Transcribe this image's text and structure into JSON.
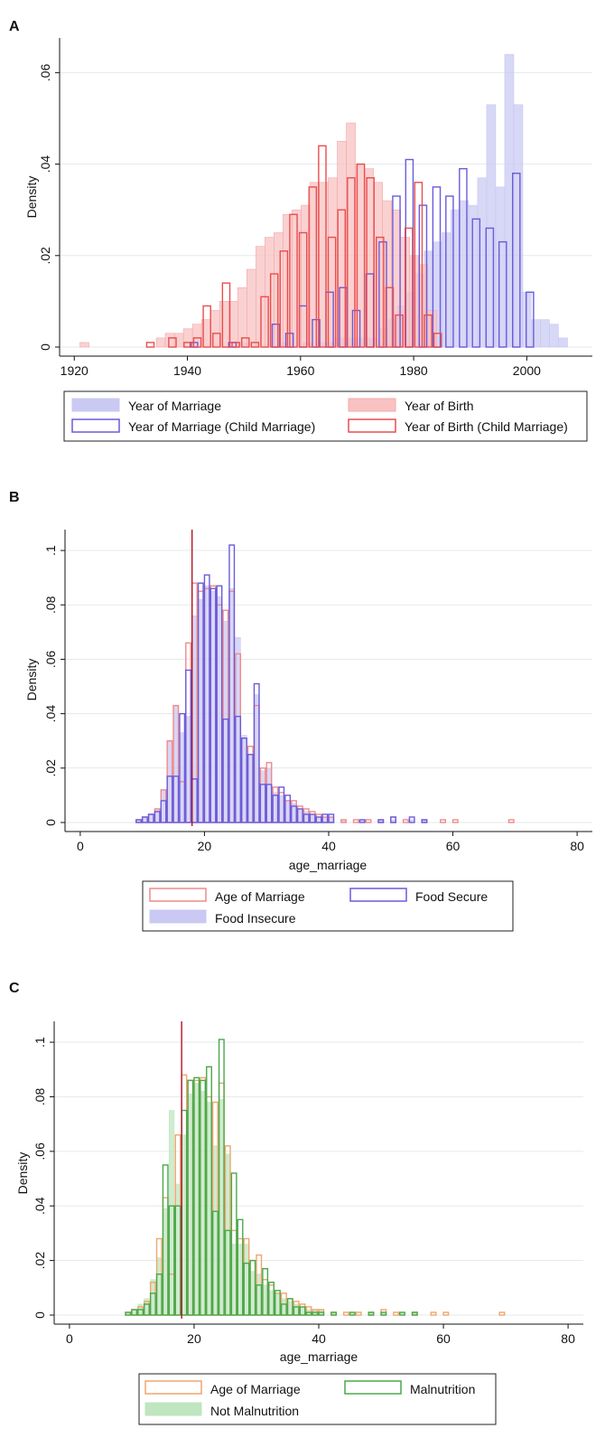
{
  "colors": {
    "marriage_fill": "#c9c9f3",
    "marriage_edge": "#6a5bdc",
    "birth_fill": "#f8c2c2",
    "birth_edge": "#ea4d4d",
    "orange_edge": "#f0a56e",
    "green_fill": "#bfe6bf",
    "green_edge": "#4aa84a",
    "ref_line": "#b0132b"
  },
  "chart_data": [
    {
      "panel_label": "A",
      "type": "histogram",
      "xlabel": "",
      "ylabel": "Density",
      "xlim": [
        1919,
        2010
      ],
      "ylim": [
        0,
        0.066
      ],
      "xticks": [
        "1920",
        "1940",
        "1960",
        "1980",
        "2000"
      ],
      "xtick_values": [
        1920,
        1940,
        1960,
        1980,
        2000
      ],
      "yticks": [
        "0",
        ".02",
        ".04",
        ".06"
      ],
      "ytick_values": [
        0,
        0.02,
        0.04,
        0.06
      ],
      "grid": true,
      "legend_position": "bottom",
      "legend": {
        "items": [
          {
            "label": "Year of Marriage",
            "series": 0
          },
          {
            "label": "Year of Birth",
            "series": 1
          },
          {
            "label": "Year of Marriage (Child Marriage)",
            "series": 2
          },
          {
            "label": "Year of Birth (Child Marriage)",
            "series": 3
          }
        ]
      },
      "series": [
        {
          "name": "Year of Marriage",
          "style": "filled",
          "fill": "#c9c9f3",
          "stroke": "#c9c9f3",
          "bin_width": 1.6,
          "bins": [
            1949.2,
            1956.4,
            1960.4,
            1962.9,
            1964.5,
            1966.0,
            1967.6,
            1969.2,
            1970.8,
            1972.3,
            1973.9,
            1975.5,
            1977.1,
            1978.7,
            1980.3,
            1981.9,
            1983.4,
            1985.0,
            1986.6,
            1988.1,
            1989.7,
            1991.3,
            1992.9,
            1994.5,
            1996.1,
            1997.7,
            1999.2,
            2000.8,
            2002.4,
            2004.0,
            2005.6
          ],
          "values": [
            0.001,
            0.001,
            0.001,
            0.001,
            0.001,
            0.002,
            0.002,
            0.002,
            0.002,
            0.002,
            0.004,
            0.006,
            0.009,
            0.012,
            0.016,
            0.021,
            0.023,
            0.025,
            0.03,
            0.032,
            0.031,
            0.037,
            0.053,
            0.035,
            0.064,
            0.053,
            0.012,
            0.006,
            0.006,
            0.005,
            0.002
          ]
        },
        {
          "name": "Year of Birth",
          "style": "filled",
          "fill": "#f8c2c2",
          "stroke": "#f3a9a9",
          "bin_width": 1.6,
          "bins": [
            1921.0,
            1934.5,
            1936.1,
            1937.7,
            1939.3,
            1940.9,
            1942.5,
            1944.1,
            1945.7,
            1947.3,
            1948.9,
            1950.5,
            1952.1,
            1953.7,
            1955.3,
            1956.9,
            1958.5,
            1960.1,
            1961.7,
            1963.3,
            1964.9,
            1966.5,
            1968.1,
            1969.7,
            1971.3,
            1972.9,
            1974.5,
            1976.1,
            1977.7,
            1979.3,
            1980.9,
            1982.5
          ],
          "values": [
            0.001,
            0.002,
            0.003,
            0.003,
            0.004,
            0.005,
            0.006,
            0.008,
            0.01,
            0.01,
            0.013,
            0.017,
            0.022,
            0.024,
            0.025,
            0.029,
            0.03,
            0.031,
            0.036,
            0.036,
            0.037,
            0.045,
            0.049,
            0.04,
            0.039,
            0.036,
            0.032,
            0.03,
            0.024,
            0.02,
            0.018,
            0.008
          ]
        },
        {
          "name": "Year of Marriage (Child Marriage)",
          "style": "outline",
          "fill": "none",
          "stroke": "#6a5bdc",
          "bin_width": 1.3,
          "bins": [
            1940.5,
            1947.3,
            1955.0,
            1957.4,
            1959.8,
            1962.1,
            1964.5,
            1966.9,
            1969.2,
            1971.6,
            1973.9,
            1976.3,
            1978.6,
            1981.0,
            1983.4,
            1985.7,
            1988.1,
            1990.4,
            1992.8,
            1995.1,
            1997.5,
            1999.9
          ],
          "values": [
            0.001,
            0.001,
            0.005,
            0.003,
            0.009,
            0.006,
            0.012,
            0.013,
            0.008,
            0.016,
            0.023,
            0.033,
            0.041,
            0.031,
            0.035,
            0.033,
            0.039,
            0.028,
            0.026,
            0.023,
            0.038,
            0.012
          ]
        },
        {
          "name": "Year of Birth (Child Marriage)",
          "style": "outline",
          "fill": "none",
          "stroke": "#ea4d4d",
          "bin_width": 1.3,
          "bins": [
            1932.8,
            1936.7,
            1939.4,
            1941.1,
            1942.8,
            1944.5,
            1946.2,
            1947.9,
            1949.6,
            1951.3,
            1953.0,
            1954.7,
            1956.4,
            1958.1,
            1959.8,
            1961.5,
            1963.2,
            1964.9,
            1966.6,
            1968.3,
            1970.0,
            1971.7,
            1973.4,
            1975.1,
            1976.8,
            1978.5,
            1980.2,
            1981.9,
            1983.6
          ],
          "values": [
            0.001,
            0.002,
            0.001,
            0.002,
            0.009,
            0.003,
            0.014,
            0.001,
            0.002,
            0.001,
            0.011,
            0.016,
            0.021,
            0.029,
            0.025,
            0.035,
            0.044,
            0.024,
            0.03,
            0.037,
            0.04,
            0.037,
            0.024,
            0.013,
            0.007,
            0.026,
            0.036,
            0.007,
            0.003
          ]
        }
      ]
    },
    {
      "panel_label": "B",
      "type": "histogram",
      "xlabel": "age_marriage",
      "ylabel": "Density",
      "xlim": [
        -1,
        81
      ],
      "ylim": [
        0,
        0.105
      ],
      "xticks": [
        "0",
        "20",
        "40",
        "60",
        "80"
      ],
      "xtick_values": [
        0,
        20,
        40,
        60,
        80
      ],
      "yticks": [
        "0",
        ".02",
        ".04",
        ".06",
        ".08",
        ".1"
      ],
      "ytick_values": [
        0,
        0.02,
        0.04,
        0.06,
        0.08,
        0.1
      ],
      "grid": true,
      "reference_line_x": 18,
      "legend_position": "bottom",
      "legend": {
        "items": [
          {
            "label": "Age of Marriage",
            "series": 1
          },
          {
            "label": "Food Secure",
            "series": 2
          },
          {
            "label": "Food Insecure",
            "series": 0
          }
        ]
      },
      "series": [
        {
          "name": "Food Insecure",
          "style": "filled",
          "fill": "#c9c9f3",
          "stroke": "#c9c9f3",
          "bin_width": 0.8,
          "bins": [
            9,
            10,
            11,
            12,
            13,
            14,
            15,
            16,
            17,
            18,
            19,
            20,
            21,
            22,
            23,
            24,
            25,
            26,
            27,
            28,
            29,
            30,
            31,
            32,
            33,
            34,
            35,
            36,
            37,
            38,
            39,
            40,
            42,
            45,
            48,
            50,
            53,
            55
          ],
          "values": [
            0.001,
            0.002,
            0.003,
            0.005,
            0.012,
            0.03,
            0.043,
            0.033,
            0.039,
            0.076,
            0.082,
            0.087,
            0.085,
            0.083,
            0.074,
            0.086,
            0.068,
            0.032,
            0.025,
            0.047,
            0.019,
            0.02,
            0.011,
            0.01,
            0.008,
            0.007,
            0.005,
            0.004,
            0.003,
            0.002,
            0.002,
            0.002,
            0.001,
            0.001,
            0.001,
            0.001,
            0.001,
            0.001
          ]
        },
        {
          "name": "Age of Marriage",
          "style": "outline",
          "fill": "none",
          "stroke": "#f08a8a",
          "bin_width": 0.8,
          "bins": [
            9,
            10,
            11,
            12,
            13,
            14,
            15,
            16,
            17,
            18,
            19,
            20,
            21,
            22,
            23,
            24,
            25,
            26,
            27,
            28,
            29,
            30,
            31,
            32,
            33,
            34,
            35,
            36,
            37,
            38,
            39,
            40,
            42,
            44,
            46,
            48,
            50,
            52,
            55,
            58,
            60,
            69
          ],
          "values": [
            0.001,
            0.002,
            0.003,
            0.005,
            0.012,
            0.03,
            0.043,
            0.015,
            0.066,
            0.088,
            0.085,
            0.086,
            0.087,
            0.08,
            0.078,
            0.085,
            0.062,
            0.031,
            0.028,
            0.043,
            0.02,
            0.022,
            0.013,
            0.011,
            0.008,
            0.008,
            0.006,
            0.005,
            0.004,
            0.003,
            0.002,
            0.002,
            0.001,
            0.001,
            0.001,
            0.001,
            0.002,
            0.001,
            0.001,
            0.001,
            0.001,
            0.001
          ]
        },
        {
          "name": "Food Secure",
          "style": "outline",
          "fill": "none",
          "stroke": "#6a5bdc",
          "bin_width": 0.8,
          "bins": [
            9,
            10,
            11,
            12,
            13,
            14,
            15,
            16,
            17,
            18,
            19,
            20,
            21,
            22,
            23,
            24,
            25,
            26,
            27,
            28,
            29,
            30,
            31,
            32,
            33,
            34,
            35,
            36,
            37,
            38,
            39,
            40,
            45,
            48,
            50,
            53,
            55
          ],
          "values": [
            0.001,
            0.002,
            0.003,
            0.004,
            0.008,
            0.017,
            0.017,
            0.04,
            0.056,
            0.016,
            0.088,
            0.091,
            0.086,
            0.087,
            0.038,
            0.102,
            0.039,
            0.031,
            0.025,
            0.051,
            0.014,
            0.014,
            0.01,
            0.013,
            0.01,
            0.006,
            0.005,
            0.003,
            0.003,
            0.002,
            0.003,
            0.003,
            0.001,
            0.001,
            0.002,
            0.002,
            0.001
          ]
        }
      ]
    },
    {
      "panel_label": "C",
      "type": "histogram",
      "xlabel": "age_marriage",
      "ylabel": "Density",
      "xlim": [
        -1,
        81
      ],
      "ylim": [
        0,
        0.105
      ],
      "xticks": [
        "0",
        "20",
        "40",
        "60",
        "80"
      ],
      "xtick_values": [
        0,
        20,
        40,
        60,
        80
      ],
      "yticks": [
        "0",
        ".02",
        ".04",
        ".06",
        ".08",
        ".1"
      ],
      "ytick_values": [
        0,
        0.02,
        0.04,
        0.06,
        0.08,
        0.1
      ],
      "grid": true,
      "reference_line_x": 18,
      "legend_position": "bottom",
      "legend": {
        "items": [
          {
            "label": "Age of Marriage",
            "series": 1
          },
          {
            "label": "Malnutrition",
            "series": 2
          },
          {
            "label": "Not Malnutrition",
            "series": 0
          }
        ]
      },
      "series": [
        {
          "name": "Not Malnutrition",
          "style": "filled",
          "fill": "#bfe6bf",
          "stroke": "#bfe6bf",
          "bin_width": 0.8,
          "bins": [
            9,
            10,
            11,
            12,
            13,
            14,
            15,
            16,
            17,
            18,
            19,
            20,
            21,
            22,
            23,
            24,
            25,
            26,
            27,
            28,
            29,
            30,
            31,
            32,
            33,
            34,
            35,
            36,
            37,
            38,
            39,
            40,
            42,
            45,
            48,
            50,
            53,
            55
          ],
          "values": [
            0.001,
            0.002,
            0.004,
            0.006,
            0.013,
            0.021,
            0.039,
            0.075,
            0.048,
            0.066,
            0.081,
            0.085,
            0.082,
            0.078,
            0.062,
            0.079,
            0.059,
            0.026,
            0.026,
            0.026,
            0.016,
            0.015,
            0.011,
            0.009,
            0.008,
            0.006,
            0.005,
            0.004,
            0.003,
            0.002,
            0.002,
            0.002,
            0.001,
            0.001,
            0.001,
            0.001,
            0.001,
            0.001
          ]
        },
        {
          "name": "Age of Marriage",
          "style": "outline",
          "fill": "none",
          "stroke": "#f0a56e",
          "bin_width": 0.8,
          "bins": [
            9,
            10,
            11,
            12,
            13,
            14,
            15,
            16,
            17,
            18,
            19,
            20,
            21,
            22,
            23,
            24,
            25,
            26,
            27,
            28,
            29,
            30,
            31,
            32,
            33,
            34,
            35,
            36,
            37,
            38,
            39,
            40,
            42,
            44,
            46,
            48,
            50,
            52,
            55,
            58,
            60,
            69
          ],
          "values": [
            0.001,
            0.002,
            0.003,
            0.005,
            0.012,
            0.028,
            0.043,
            0.015,
            0.066,
            0.088,
            0.086,
            0.086,
            0.087,
            0.08,
            0.078,
            0.085,
            0.062,
            0.031,
            0.028,
            0.028,
            0.02,
            0.022,
            0.013,
            0.011,
            0.008,
            0.008,
            0.006,
            0.005,
            0.004,
            0.003,
            0.002,
            0.002,
            0.001,
            0.001,
            0.001,
            0.001,
            0.002,
            0.001,
            0.001,
            0.001,
            0.001,
            0.001
          ]
        },
        {
          "name": "Malnutrition",
          "style": "outline",
          "fill": "none",
          "stroke": "#4aa84a",
          "bin_width": 0.8,
          "bins": [
            9,
            10,
            11,
            12,
            13,
            14,
            15,
            16,
            17,
            18,
            19,
            20,
            21,
            22,
            23,
            24,
            25,
            26,
            27,
            28,
            29,
            30,
            31,
            32,
            33,
            34,
            35,
            36,
            37,
            38,
            39,
            40,
            42,
            45,
            48,
            50,
            53,
            55
          ],
          "values": [
            0.001,
            0.002,
            0.002,
            0.004,
            0.008,
            0.015,
            0.055,
            0.04,
            0.04,
            0.075,
            0.086,
            0.087,
            0.086,
            0.091,
            0.038,
            0.101,
            0.031,
            0.052,
            0.035,
            0.019,
            0.02,
            0.011,
            0.017,
            0.012,
            0.009,
            0.004,
            0.006,
            0.003,
            0.003,
            0.001,
            0.001,
            0.001,
            0.001,
            0.001,
            0.001,
            0.001,
            0.001,
            0.001
          ]
        }
      ]
    }
  ]
}
